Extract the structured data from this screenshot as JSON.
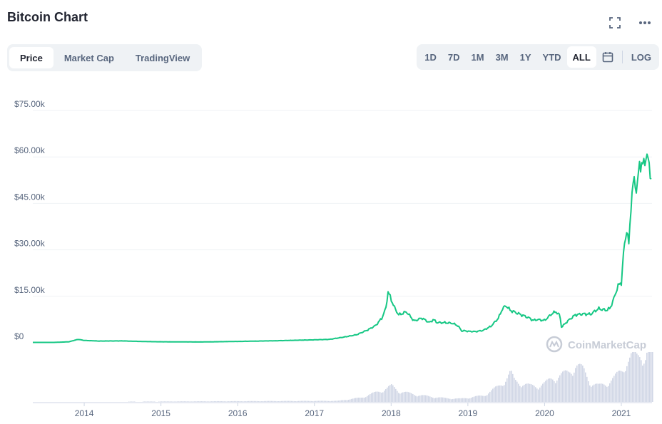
{
  "header": {
    "title": "Bitcoin Chart"
  },
  "tabs_left": [
    {
      "label": "Price",
      "active": true
    },
    {
      "label": "Market Cap",
      "active": false
    },
    {
      "label": "TradingView",
      "active": false
    }
  ],
  "ranges": [
    {
      "label": "1D",
      "active": false
    },
    {
      "label": "7D",
      "active": false
    },
    {
      "label": "1M",
      "active": false
    },
    {
      "label": "3M",
      "active": false
    },
    {
      "label": "1Y",
      "active": false
    },
    {
      "label": "YTD",
      "active": false
    },
    {
      "label": "ALL",
      "active": true
    }
  ],
  "log_label": "LOG",
  "icons": {
    "expand": "expand-icon",
    "more": "more-icon",
    "calendar": "calendar-icon"
  },
  "colors": {
    "line": "#16c784",
    "volume": "#d1d7e6",
    "grid": "#eff2f5",
    "muted": "#58667e"
  },
  "watermark": "CoinMarketCap",
  "chart_data": {
    "type": "line",
    "title": "",
    "xlabel": "",
    "ylabel": "",
    "ylim": [
      0,
      75000
    ],
    "xlim": [
      2013.33,
      2021.4
    ],
    "grid": true,
    "y_ticks": [
      {
        "value": 0,
        "label": "$0"
      },
      {
        "value": 15000,
        "label": "$15.00k"
      },
      {
        "value": 30000,
        "label": "$30.00k"
      },
      {
        "value": 45000,
        "label": "$45.00k"
      },
      {
        "value": 60000,
        "label": "$60.00k"
      },
      {
        "value": 75000,
        "label": "$75.00k"
      }
    ],
    "x_ticks": [
      {
        "value": 2014,
        "label": "2014"
      },
      {
        "value": 2015,
        "label": "2015"
      },
      {
        "value": 2016,
        "label": "2016"
      },
      {
        "value": 2017,
        "label": "2017"
      },
      {
        "value": 2018,
        "label": "2018"
      },
      {
        "value": 2019,
        "label": "2019"
      },
      {
        "value": 2020,
        "label": "2020"
      },
      {
        "value": 2021,
        "label": "2021"
      }
    ],
    "price": {
      "x": [
        2013.33,
        2013.6,
        2013.8,
        2013.92,
        2014.0,
        2014.2,
        2014.5,
        2014.8,
        2015.0,
        2015.5,
        2016.0,
        2016.5,
        2017.0,
        2017.2,
        2017.4,
        2017.55,
        2017.7,
        2017.8,
        2017.88,
        2017.93,
        2017.96,
        2018.0,
        2018.05,
        2018.1,
        2018.2,
        2018.3,
        2018.4,
        2018.5,
        2018.55,
        2018.6,
        2018.7,
        2018.8,
        2018.87,
        2018.92,
        2018.96,
        2019.0,
        2019.1,
        2019.2,
        2019.3,
        2019.4,
        2019.45,
        2019.5,
        2019.55,
        2019.6,
        2019.7,
        2019.8,
        2019.85,
        2019.9,
        2020.0,
        2020.1,
        2020.15,
        2020.2,
        2020.22,
        2020.3,
        2020.4,
        2020.5,
        2020.6,
        2020.7,
        2020.8,
        2020.85,
        2020.9,
        2020.95,
        2021.0,
        2021.03,
        2021.07,
        2021.1,
        2021.13,
        2021.16,
        2021.2,
        2021.24,
        2021.27,
        2021.3,
        2021.33,
        2021.36,
        2021.4
      ],
      "y": [
        120,
        110,
        300,
        1100,
        750,
        550,
        600,
        380,
        320,
        250,
        430,
        650,
        950,
        1100,
        1900,
        2600,
        4200,
        5600,
        8000,
        11000,
        16500,
        14000,
        11000,
        9000,
        10000,
        7000,
        8000,
        6500,
        7500,
        6500,
        6500,
        6300,
        5500,
        3800,
        3900,
        3700,
        3600,
        4000,
        5300,
        8000,
        11000,
        12000,
        10500,
        10000,
        9000,
        8000,
        7200,
        7500,
        7200,
        9500,
        10000,
        8800,
        5000,
        7000,
        9000,
        9300,
        9200,
        11000,
        10500,
        11000,
        14000,
        18000,
        19500,
        29000,
        37000,
        31000,
        47000,
        52000,
        50000,
        57000,
        59000,
        56000,
        63000,
        56000,
        53000
      ]
    },
    "volume_relative": {
      "x": [
        2013.33,
        2017.3,
        2017.6,
        2017.8,
        2017.93,
        2018.0,
        2018.1,
        2018.3,
        2018.5,
        2018.7,
        2018.9,
        2019.0,
        2019.2,
        2019.4,
        2019.5,
        2019.55,
        2019.6,
        2019.7,
        2019.8,
        2019.9,
        2020.0,
        2020.1,
        2020.2,
        2020.3,
        2020.4,
        2020.5,
        2020.6,
        2020.7,
        2020.8,
        2020.9,
        2021.0,
        2021.05,
        2021.1,
        2021.15,
        2021.2,
        2021.25,
        2021.3,
        2021.35,
        2021.4
      ],
      "y": [
        0.0,
        0.02,
        0.08,
        0.18,
        0.25,
        0.3,
        0.2,
        0.14,
        0.1,
        0.07,
        0.06,
        0.08,
        0.12,
        0.3,
        0.45,
        0.55,
        0.4,
        0.35,
        0.3,
        0.3,
        0.35,
        0.45,
        0.5,
        0.55,
        0.7,
        0.6,
        0.35,
        0.3,
        0.35,
        0.45,
        0.6,
        0.75,
        0.8,
        0.9,
        0.85,
        0.95,
        0.8,
        1.0,
        0.85
      ]
    }
  }
}
